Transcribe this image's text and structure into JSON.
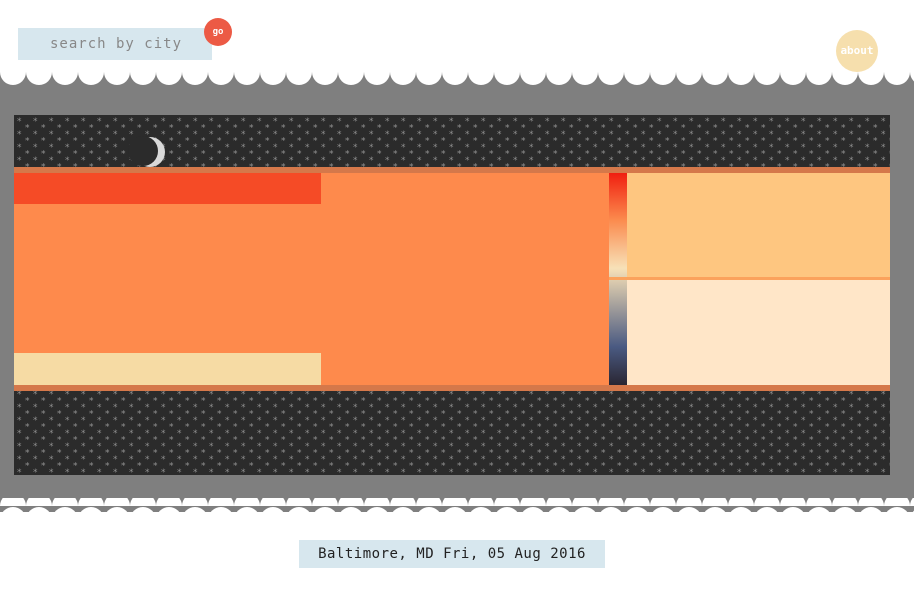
{
  "search": {
    "placeholder": "search by city",
    "go_label": "go"
  },
  "nav": {
    "about_label": "about"
  },
  "location": {
    "text": "Baltimore, MD Fri, 05 Aug 2016"
  },
  "colors": {
    "night": "#2b2b2b",
    "star": "#8f8f8f",
    "moon": "#d9d9d9",
    "sky": "#fe8a4c",
    "band_top": "#f54b26",
    "band_bottom": "#f6dba4",
    "horizon": "#d5784a",
    "panel_upper": "#fec680",
    "panel_lower": "#ffe6c8",
    "frame_gray": "#7f7f7f",
    "search_bg": "#d7e7ee",
    "go_bg": "#ec5a45",
    "about_bg": "#f6dfad"
  },
  "icons": [
    "moon-icon",
    "star-icon"
  ]
}
